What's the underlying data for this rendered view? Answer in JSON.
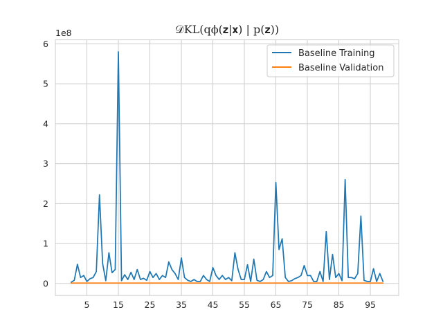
{
  "chart_data": {
    "type": "line",
    "title": "𝒟KL(qϕ(𝐳|𝐱) | p(𝐳))",
    "xlabel": "",
    "ylabel": "",
    "y_offset_label": "1e8",
    "xlim": [
      -5,
      104
    ],
    "ylim": [
      -0.3,
      6.1
    ],
    "x_ticks": [
      5,
      15,
      25,
      35,
      45,
      55,
      65,
      75,
      85,
      95
    ],
    "y_ticks": [
      0,
      1,
      2,
      3,
      4,
      5,
      6
    ],
    "grid": true,
    "legend_position": "top-right",
    "colors": {
      "training": "#1f77b4",
      "validation": "#ff7f0e",
      "grid": "#cccccc",
      "axes": "#cccccc"
    },
    "x": [
      0,
      1,
      2,
      3,
      4,
      5,
      6,
      7,
      8,
      9,
      10,
      11,
      12,
      13,
      14,
      15,
      16,
      17,
      18,
      19,
      20,
      21,
      22,
      23,
      24,
      25,
      26,
      27,
      28,
      29,
      30,
      31,
      32,
      33,
      34,
      35,
      36,
      37,
      38,
      39,
      40,
      41,
      42,
      43,
      44,
      45,
      46,
      47,
      48,
      49,
      50,
      51,
      52,
      53,
      54,
      55,
      56,
      57,
      58,
      59,
      60,
      61,
      62,
      63,
      64,
      65,
      66,
      67,
      68,
      69,
      70,
      71,
      72,
      73,
      74,
      75,
      76,
      77,
      78,
      79,
      80,
      81,
      82,
      83,
      84,
      85,
      86,
      87,
      88,
      89,
      90,
      91,
      92,
      93,
      94,
      95,
      96,
      97,
      98,
      99
    ],
    "series": [
      {
        "name": "Baseline Training",
        "color": "#1f77b4",
        "values": [
          0.03,
          0.08,
          0.48,
          0.15,
          0.2,
          0.05,
          0.12,
          0.15,
          0.3,
          2.22,
          0.5,
          0.07,
          0.77,
          0.27,
          0.35,
          5.8,
          0.07,
          0.22,
          0.1,
          0.28,
          0.1,
          0.35,
          0.1,
          0.13,
          0.08,
          0.3,
          0.15,
          0.25,
          0.1,
          0.2,
          0.15,
          0.54,
          0.35,
          0.25,
          0.1,
          0.64,
          0.15,
          0.08,
          0.05,
          0.1,
          0.05,
          0.05,
          0.2,
          0.1,
          0.05,
          0.4,
          0.2,
          0.1,
          0.2,
          0.1,
          0.15,
          0.07,
          0.77,
          0.35,
          0.1,
          0.1,
          0.47,
          0.05,
          0.61,
          0.08,
          0.05,
          0.1,
          0.3,
          0.15,
          0.2,
          2.53,
          0.85,
          1.12,
          0.15,
          0.05,
          0.07,
          0.12,
          0.15,
          0.2,
          0.45,
          0.2,
          0.2,
          0.05,
          0.05,
          0.3,
          0.05,
          1.3,
          0.1,
          0.73,
          0.15,
          0.25,
          0.07,
          2.6,
          0.15,
          0.15,
          0.12,
          0.25,
          1.69,
          0.08,
          0.05,
          0.05,
          0.37,
          0.05,
          0.25,
          0.05
        ]
      },
      {
        "name": "Baseline Validation",
        "color": "#ff7f0e",
        "values": [
          0.01,
          0.01,
          0.01,
          0.01,
          0.01,
          0.01,
          0.01,
          0.01,
          0.01,
          0.01,
          0.01,
          0.01,
          0.01,
          0.01,
          0.01,
          0.01,
          0.01,
          0.01,
          0.01,
          0.01,
          0.01,
          0.01,
          0.01,
          0.01,
          0.01,
          0.01,
          0.01,
          0.01,
          0.01,
          0.01,
          0.01,
          0.01,
          0.01,
          0.01,
          0.01,
          0.01,
          0.01,
          0.01,
          0.01,
          0.01,
          0.01,
          0.01,
          0.01,
          0.01,
          0.01,
          0.01,
          0.01,
          0.01,
          0.01,
          0.01,
          0.01,
          0.01,
          0.01,
          0.01,
          0.01,
          0.01,
          0.01,
          0.01,
          0.01,
          0.01,
          0.01,
          0.01,
          0.01,
          0.01,
          0.01,
          0.01,
          0.01,
          0.01,
          0.01,
          0.01,
          0.01,
          0.01,
          0.01,
          0.01,
          0.01,
          0.01,
          0.01,
          0.01,
          0.01,
          0.01,
          0.01,
          0.01,
          0.01,
          0.01,
          0.01,
          0.01,
          0.01,
          0.01,
          0.01,
          0.01,
          0.01,
          0.01,
          0.01,
          0.01,
          0.01,
          0.01,
          0.01,
          0.01,
          0.01,
          0.01
        ]
      }
    ]
  }
}
